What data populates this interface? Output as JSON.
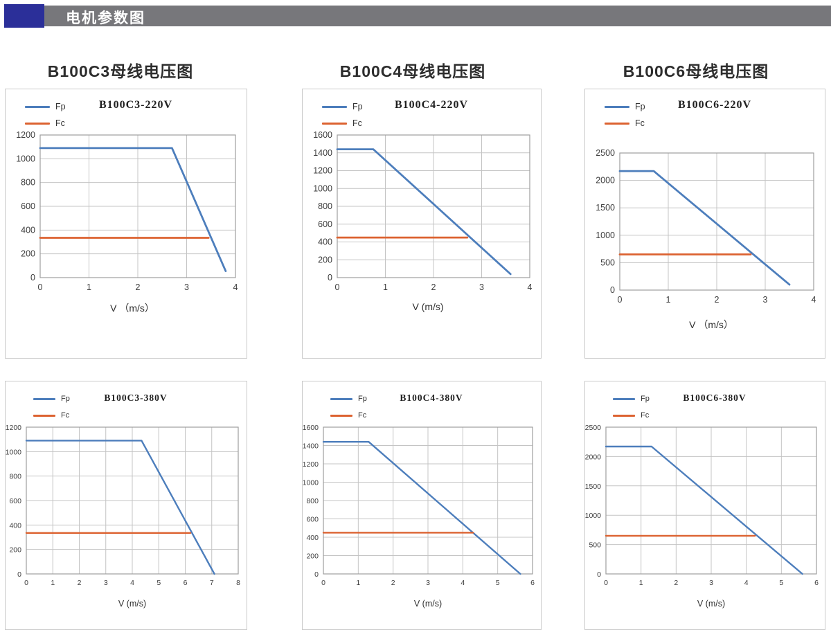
{
  "header": {
    "title": "电机参数图",
    "accent_color": "#2b2f99",
    "bar_color": "#77777b"
  },
  "columns": [
    {
      "title": "B100C3母线电压图"
    },
    {
      "title": "B100C4母线电压图"
    },
    {
      "title": "B100C6母线电压图"
    }
  ],
  "colors": {
    "fp": "#4d7ebc",
    "fc": "#dc6230"
  },
  "chart_data": [
    {
      "type": "line",
      "title": "B100C3-220V",
      "xlabel": "V （m/s）",
      "xlim": [
        0,
        4
      ],
      "xticks": [
        0,
        1,
        2,
        3,
        4
      ],
      "ylim": [
        0,
        1200
      ],
      "yticks": [
        0,
        200,
        400,
        600,
        800,
        1000,
        1200
      ],
      "grid": true,
      "legend_position": "top-left",
      "series": [
        {
          "name": "Fp",
          "color": "#4d7ebc",
          "points": [
            [
              0,
              1090
            ],
            [
              2.7,
              1090
            ],
            [
              3.8,
              55
            ]
          ]
        },
        {
          "name": "Fc",
          "color": "#dc6230",
          "points": [
            [
              0,
              335
            ],
            [
              3.45,
              335
            ]
          ]
        }
      ]
    },
    {
      "type": "line",
      "title": "B100C4-220V",
      "xlabel": "V (m/s)",
      "xlim": [
        0,
        4
      ],
      "xticks": [
        0,
        1,
        2,
        3,
        4
      ],
      "ylim": [
        0,
        1600
      ],
      "yticks": [
        0,
        200,
        400,
        600,
        800,
        1000,
        1200,
        1400,
        1600
      ],
      "grid": true,
      "legend_position": "top-left",
      "series": [
        {
          "name": "Fp",
          "color": "#4d7ebc",
          "points": [
            [
              0,
              1440
            ],
            [
              0.75,
              1440
            ],
            [
              3.6,
              40
            ]
          ]
        },
        {
          "name": "Fc",
          "color": "#dc6230",
          "points": [
            [
              0,
              450
            ],
            [
              2.7,
              450
            ]
          ]
        }
      ]
    },
    {
      "type": "line",
      "title": "B100C6-220V",
      "xlabel": "V （m/s）",
      "xlim": [
        0,
        4
      ],
      "xticks": [
        0,
        1,
        2,
        3,
        4
      ],
      "ylim": [
        0,
        2500
      ],
      "yticks": [
        0,
        500,
        1000,
        1500,
        2000,
        2500
      ],
      "grid": true,
      "legend_position": "top-left",
      "series": [
        {
          "name": "Fp",
          "color": "#4d7ebc",
          "points": [
            [
              0,
              2170
            ],
            [
              0.7,
              2170
            ],
            [
              3.5,
              100
            ]
          ]
        },
        {
          "name": "Fc",
          "color": "#dc6230",
          "points": [
            [
              0,
              650
            ],
            [
              2.7,
              650
            ]
          ]
        }
      ]
    },
    {
      "type": "line",
      "title": "B100C3-380V",
      "xlabel": "V (m/s)",
      "xlim": [
        0,
        8
      ],
      "xticks": [
        0,
        1,
        2,
        3,
        4,
        5,
        6,
        7,
        8
      ],
      "ylim": [
        0,
        1200
      ],
      "yticks": [
        0,
        200,
        400,
        600,
        800,
        1000,
        1200
      ],
      "grid": true,
      "legend_position": "top-left",
      "series": [
        {
          "name": "Fp",
          "color": "#4d7ebc",
          "points": [
            [
              0,
              1090
            ],
            [
              4.35,
              1090
            ],
            [
              7.1,
              0
            ]
          ]
        },
        {
          "name": "Fc",
          "color": "#dc6230",
          "points": [
            [
              0,
              335
            ],
            [
              6.2,
              335
            ]
          ]
        }
      ]
    },
    {
      "type": "line",
      "title": "B100C4-380V",
      "xlabel": "V (m/s)",
      "xlim": [
        0,
        6
      ],
      "xticks": [
        0,
        1,
        2,
        3,
        4,
        5,
        6
      ],
      "ylim": [
        0,
        1600
      ],
      "yticks": [
        0,
        200,
        400,
        600,
        800,
        1000,
        1200,
        1400,
        1600
      ],
      "grid": true,
      "legend_position": "top-left",
      "series": [
        {
          "name": "Fp",
          "color": "#4d7ebc",
          "points": [
            [
              0,
              1440
            ],
            [
              1.3,
              1440
            ],
            [
              5.65,
              0
            ]
          ]
        },
        {
          "name": "Fc",
          "color": "#dc6230",
          "points": [
            [
              0,
              450
            ],
            [
              4.3,
              450
            ]
          ]
        }
      ]
    },
    {
      "type": "line",
      "title": "B100C6-380V",
      "xlabel": "V (m/s)",
      "xlim": [
        0,
        6
      ],
      "xticks": [
        0,
        1,
        2,
        3,
        4,
        5,
        6
      ],
      "ylim": [
        0,
        2500
      ],
      "yticks": [
        0,
        500,
        1000,
        1500,
        2000,
        2500
      ],
      "grid": true,
      "legend_position": "top-left",
      "series": [
        {
          "name": "Fp",
          "color": "#4d7ebc",
          "points": [
            [
              0,
              2170
            ],
            [
              1.3,
              2170
            ],
            [
              5.6,
              0
            ]
          ]
        },
        {
          "name": "Fc",
          "color": "#dc6230",
          "points": [
            [
              0,
              650
            ],
            [
              4.25,
              650
            ]
          ]
        }
      ]
    }
  ]
}
